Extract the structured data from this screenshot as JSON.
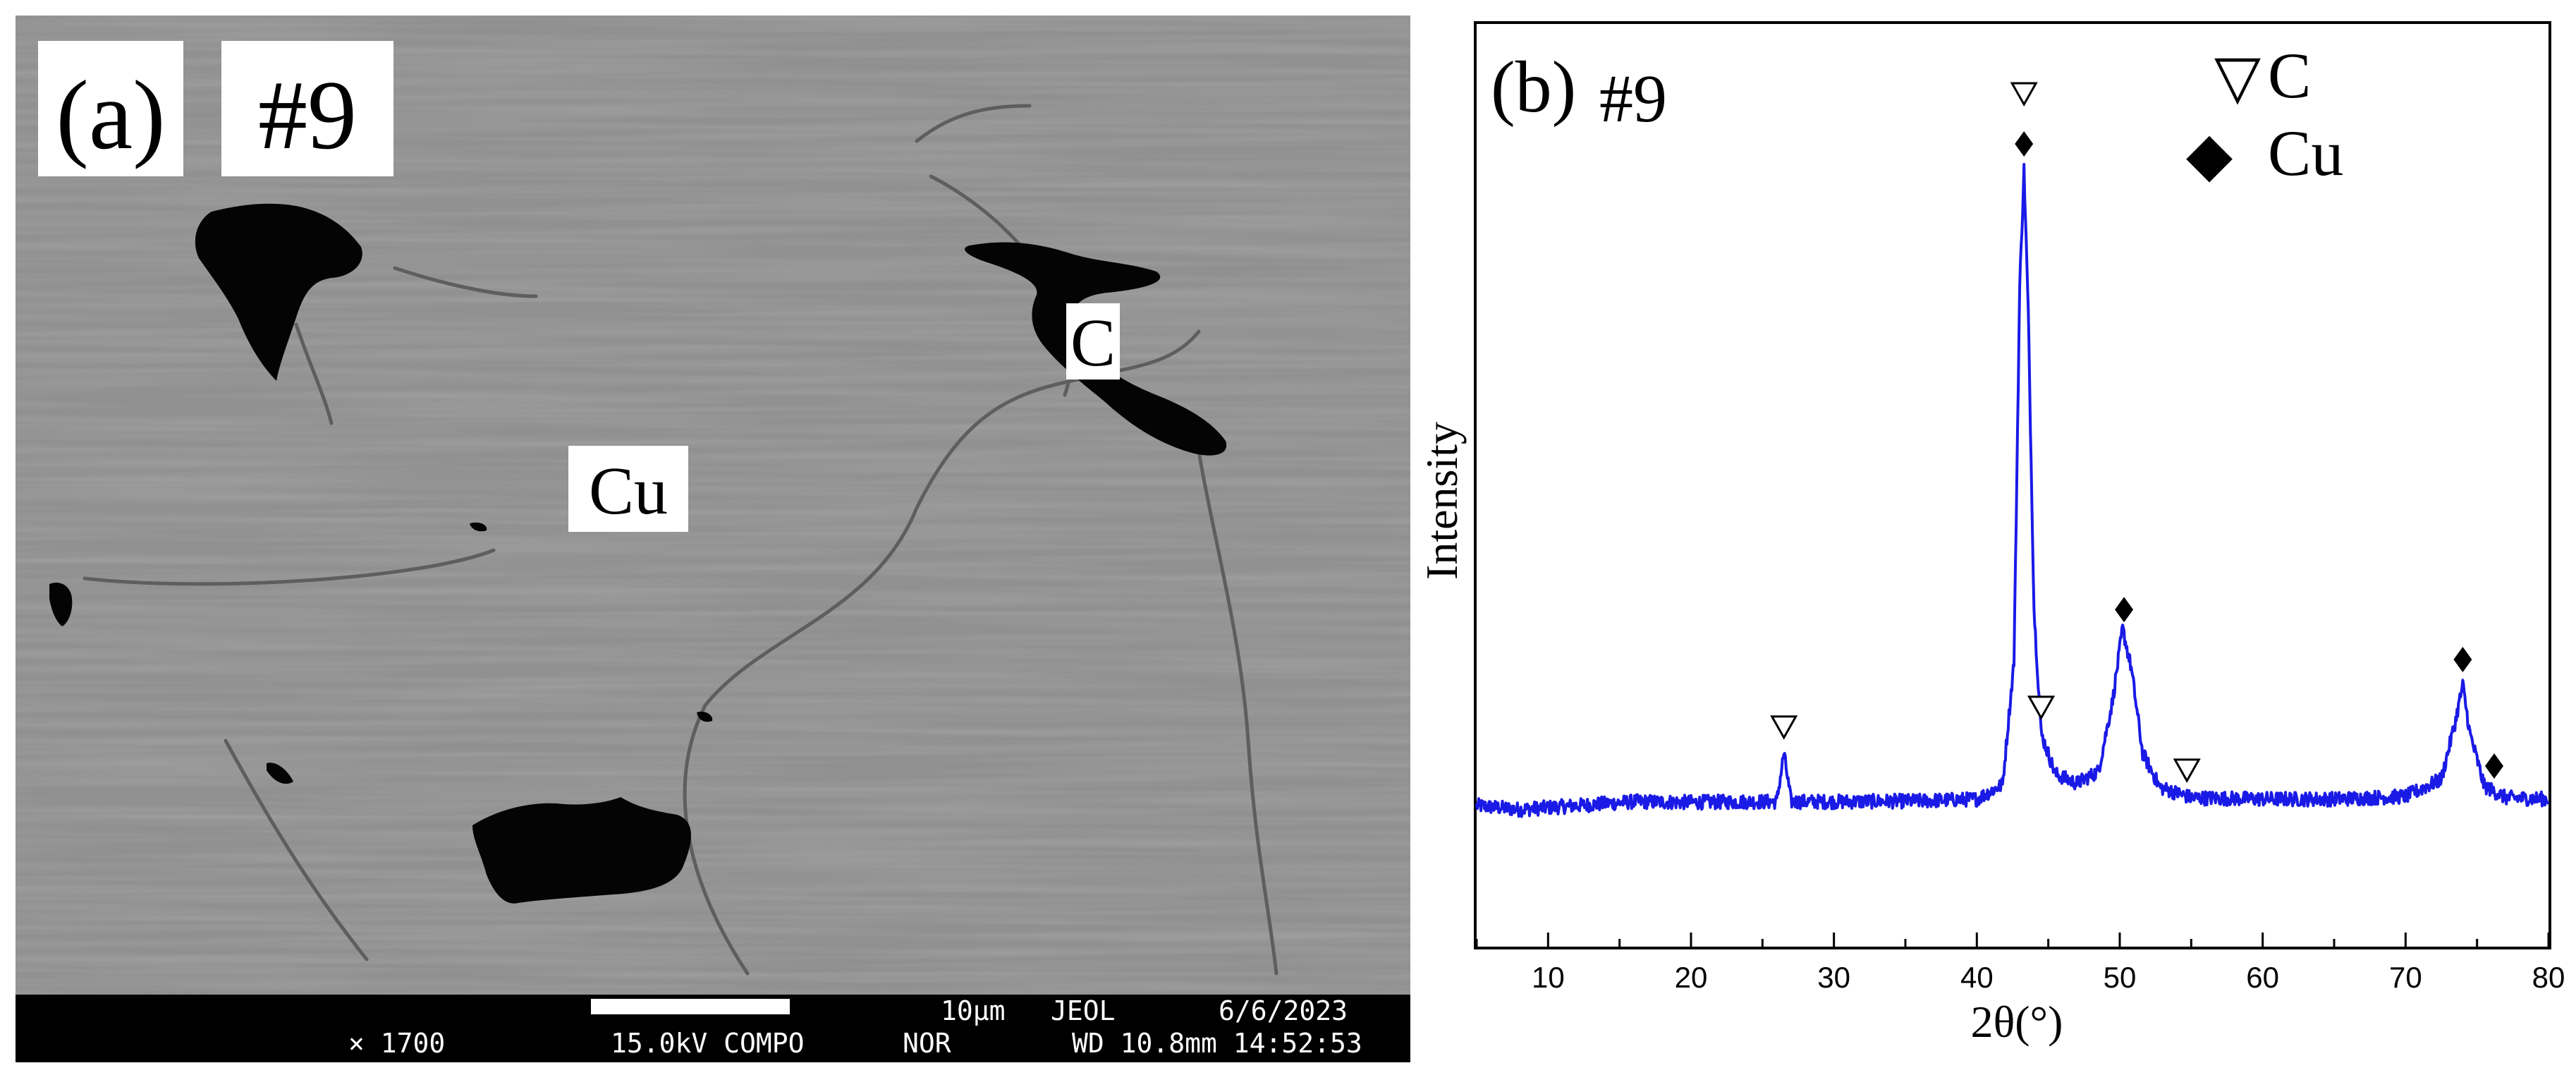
{
  "panel_a": {
    "panel_label": "(a)",
    "sample_label": "#9",
    "phase_labels": {
      "carbon": "C",
      "copper": "Cu"
    },
    "info_bar": {
      "scale_text": "10μm",
      "maker": "JEOL",
      "date": "6/6/2023",
      "magnification": "× 1700",
      "voltage_mode": "15.0kV COMPO",
      "mode": "NOR",
      "wd_time": "WD 10.8mm 14:52:53"
    }
  },
  "panel_b": {
    "panel_label": "(b)",
    "sample_label": "#9",
    "legend": [
      {
        "symbol": "▽",
        "label": "C"
      },
      {
        "symbol": "◆",
        "label": "Cu"
      }
    ],
    "colors": {
      "pattern": "#1a1ae6",
      "axis": "#000000"
    }
  },
  "chart_data": {
    "type": "line",
    "xlabel": "2θ(°)",
    "ylabel": "Intensity",
    "xlim": [
      5,
      80
    ],
    "x_ticks": [
      10,
      20,
      30,
      40,
      50,
      60,
      70,
      80
    ],
    "y_ticks_shown": false,
    "series": [
      {
        "x": [
          5,
          8,
          12,
          16,
          20,
          24,
          26.0,
          26.5,
          27.0,
          30,
          36,
          40,
          41.8,
          42.6,
          43.0,
          43.3,
          43.6,
          44.0,
          44.5,
          45.5,
          47,
          48.5,
          49.5,
          50.2,
          50.8,
          51.6,
          52.8,
          55,
          60,
          65,
          70,
          72.5,
          73.5,
          74.0,
          74.5,
          75.5,
          77,
          80
        ],
        "y": [
          30,
          24,
          30,
          36,
          35,
          36,
          36,
          110,
          36,
          36,
          37,
          40,
          62,
          250,
          820,
          1000,
          780,
          330,
          140,
          78,
          64,
          82,
          190,
          300,
          240,
          110,
          58,
          42,
          40,
          40,
          44,
          70,
          160,
          214,
          140,
          60,
          42,
          40
        ]
      }
    ],
    "peak_markers": [
      {
        "x": 26.5,
        "phase": "C"
      },
      {
        "x": 43.3,
        "phase": "C"
      },
      {
        "x": 43.3,
        "phase": "Cu"
      },
      {
        "x": 44.5,
        "phase": "C"
      },
      {
        "x": 50.3,
        "phase": "Cu"
      },
      {
        "x": 54.7,
        "phase": "C"
      },
      {
        "x": 74.0,
        "phase": "Cu"
      },
      {
        "x": 76.2,
        "phase": "Cu"
      }
    ]
  }
}
